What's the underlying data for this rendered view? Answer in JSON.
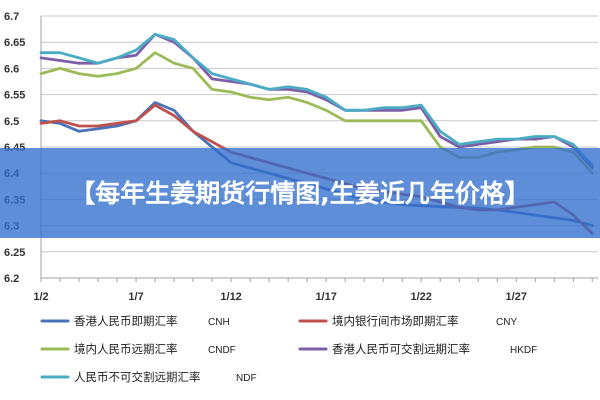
{
  "overlay_title": "【每年生姜期货行情图,生姜近几年价格】",
  "chart_data": {
    "type": "line",
    "y_ticks": [
      "6.7",
      "6.65",
      "6.6",
      "6.55",
      "6.5",
      "6.45",
      "6.4",
      "6.35",
      "6.3",
      "6.25",
      "6.2"
    ],
    "ylim": [
      6.2,
      6.7
    ],
    "x_ticks": [
      {
        "label": "1/2",
        "x": 0
      },
      {
        "label": "1/7",
        "x": 5
      },
      {
        "label": "1/12",
        "x": 10
      },
      {
        "label": "1/17",
        "x": 15
      },
      {
        "label": "1/22",
        "x": 20
      },
      {
        "label": "1/27",
        "x": 25
      }
    ],
    "xlim": [
      0,
      29.3
    ],
    "grid": true,
    "legend_position": "bottom",
    "series": [
      {
        "name": "香港人民币即期汇率",
        "code": "CNH",
        "color": "#4a72b8",
        "x": [
          0,
          1,
          2,
          3,
          4,
          5,
          6,
          7,
          8,
          9,
          10,
          11,
          12,
          13,
          14,
          15,
          16,
          17,
          18,
          19,
          20,
          21,
          22,
          23,
          24,
          25,
          26,
          27,
          28,
          29
        ],
        "y": [
          6.5,
          6.495,
          6.48,
          6.485,
          6.49,
          6.5,
          6.535,
          6.52,
          6.48,
          6.45,
          6.42,
          6.41,
          6.4,
          6.39,
          6.38,
          6.37,
          6.36,
          6.35,
          6.345,
          6.34,
          6.338,
          6.336,
          6.335,
          6.333,
          6.33,
          6.325,
          6.32,
          6.315,
          6.31,
          6.3
        ]
      },
      {
        "name": "境内银行间市场即期汇率",
        "code": "CNY",
        "color": "#c0504d",
        "x": [
          0,
          1,
          2,
          3,
          4,
          5,
          6,
          7,
          8,
          9,
          10,
          11,
          12,
          13,
          14,
          15,
          16,
          17,
          18,
          19,
          20,
          21,
          22,
          23,
          24,
          25,
          26,
          27,
          28,
          29
        ],
        "y": [
          6.495,
          6.5,
          6.49,
          6.49,
          6.495,
          6.5,
          6.53,
          6.51,
          6.48,
          6.46,
          6.44,
          6.43,
          6.42,
          6.41,
          6.4,
          6.39,
          6.38,
          6.37,
          6.365,
          6.36,
          6.355,
          6.345,
          6.335,
          6.33,
          6.33,
          6.335,
          6.34,
          6.345,
          6.32,
          6.285
        ]
      },
      {
        "name": "境内人民币远期汇率",
        "code": "CNDF",
        "color": "#9bbb59",
        "x": [
          0,
          1,
          2,
          3,
          4,
          5,
          6,
          7,
          8,
          9,
          10,
          11,
          12,
          13,
          14,
          15,
          16,
          17,
          18,
          19,
          20,
          21,
          22,
          23,
          24,
          25,
          26,
          27,
          28,
          29
        ],
        "y": [
          6.59,
          6.6,
          6.59,
          6.585,
          6.59,
          6.6,
          6.63,
          6.61,
          6.6,
          6.56,
          6.555,
          6.545,
          6.54,
          6.545,
          6.535,
          6.52,
          6.5,
          6.5,
          6.5,
          6.5,
          6.5,
          6.45,
          6.43,
          6.43,
          6.44,
          6.445,
          6.45,
          6.45,
          6.44,
          6.4
        ]
      },
      {
        "name": "香港人民币可交割远期汇率",
        "code": "HKDF",
        "color": "#7d5fa8",
        "x": [
          0,
          1,
          2,
          3,
          4,
          5,
          6,
          7,
          8,
          9,
          10,
          11,
          12,
          13,
          14,
          15,
          16,
          17,
          18,
          19,
          20,
          21,
          22,
          23,
          24,
          25,
          26,
          27,
          28,
          29
        ],
        "y": [
          6.62,
          6.615,
          6.61,
          6.61,
          6.62,
          6.625,
          6.665,
          6.65,
          6.62,
          6.58,
          6.575,
          6.57,
          6.56,
          6.56,
          6.555,
          6.54,
          6.52,
          6.52,
          6.52,
          6.52,
          6.525,
          6.47,
          6.45,
          6.455,
          6.46,
          6.465,
          6.465,
          6.47,
          6.45,
          6.41
        ]
      },
      {
        "name": "人民币不可交割远期汇率",
        "code": "NDF",
        "color": "#4bacc6",
        "x": [
          0,
          1,
          2,
          3,
          4,
          5,
          6,
          7,
          8,
          9,
          10,
          11,
          12,
          13,
          14,
          15,
          16,
          17,
          18,
          19,
          20,
          21,
          22,
          23,
          24,
          25,
          26,
          27,
          28,
          29
        ],
        "y": [
          6.63,
          6.63,
          6.62,
          6.61,
          6.62,
          6.635,
          6.665,
          6.655,
          6.62,
          6.59,
          6.58,
          6.57,
          6.56,
          6.565,
          6.56,
          6.545,
          6.52,
          6.52,
          6.525,
          6.525,
          6.53,
          6.48,
          6.455,
          6.46,
          6.465,
          6.465,
          6.47,
          6.47,
          6.455,
          6.415
        ]
      }
    ]
  }
}
